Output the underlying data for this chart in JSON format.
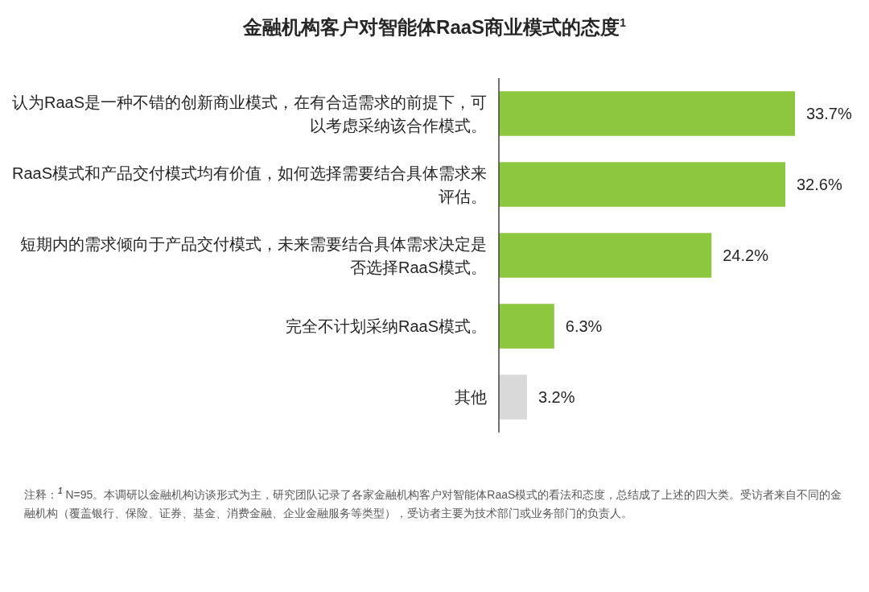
{
  "chart_data": {
    "type": "bar",
    "orientation": "horizontal",
    "title": "金融机构客户对智能体RaaS商业模式的态度$^{1}$",
    "categories": [
      "认为RaaS是一种不错的创新商业模式，在有合适需求的前提下，可以考虑采纳该合作模式。",
      "RaaS模式和产品交付模式均有价值，如何选择需要结合具体需求来评估。",
      "短期内的需求倾向于产品交付模式，未来需要结合具体需求决定是否选择RaaS模式。",
      "完全不计划采纳RaaS模式。",
      "其他"
    ],
    "values": [
      33.7,
      32.6,
      24.2,
      6.3,
      3.2
    ],
    "value_labels": [
      "33.7%",
      "32.6%",
      "24.2%",
      "6.3%",
      "3.2%"
    ],
    "colors": [
      "#8dc63f",
      "#8dc63f",
      "#8dc63f",
      "#8dc63f",
      "#d9d9d9"
    ],
    "annotations": [
      "注释：$^{1}$ N=95。本调研以金融机构访谈形式为主，研究团队记录了各家金融机构客户对智能体RaaS模式的看法和态度，总结成了上述的四大类。受访者来自不同的金融机构（覆盖银行、保险、证券、基金、消费金融、企业金融服务等类型），受访者主要为技术部门或业务部门的负责人。"
    ]
  }
}
